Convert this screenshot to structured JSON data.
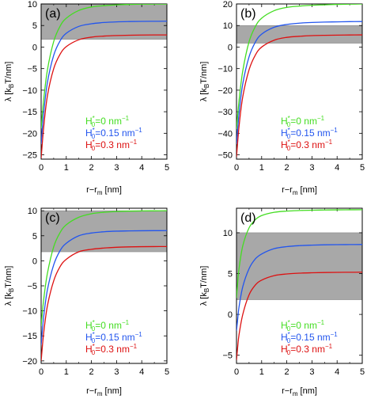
{
  "chart_data": [
    {
      "type": "line",
      "panel_label": "(a)",
      "xlabel": "r−r",
      "xlabel_sub": "m",
      "xlabel_unit": " [nm]",
      "ylabel_pre": "λ [k",
      "ylabel_sub": "B",
      "ylabel_post": "T/nm]",
      "xlim": [
        0,
        5
      ],
      "ylim": [
        -26,
        10
      ],
      "xticks": [
        0,
        1,
        2,
        3,
        4,
        5
      ],
      "yticks": [
        -25,
        -20,
        -15,
        -10,
        -5,
        0,
        5,
        10
      ],
      "shaded_band": [
        1.8,
        10
      ],
      "legend_placement": "bottom-right",
      "series": [
        {
          "name": "H0*=0 nm-1",
          "legend_prefix": "H",
          "legend_sub": "0",
          "legend_sup": "*",
          "legend_value": "=0 nm",
          "legend_exp": "−1",
          "color": "#44dd22",
          "x": [
            0,
            0.1,
            0.25,
            0.5,
            0.75,
            1,
            1.5,
            2,
            2.5,
            3,
            3.5,
            4,
            4.5,
            5
          ],
          "y": [
            -18.8,
            -12.3,
            -5.3,
            1.3,
            4.8,
            6.7,
            8.5,
            9.3,
            9.6,
            9.8,
            9.9,
            9.95,
            9.97,
            9.99
          ]
        },
        {
          "name": "H0*=0.15 nm-1",
          "legend_prefix": "H",
          "legend_sub": "0",
          "legend_sup": "*",
          "legend_value": "=0.15 nm",
          "legend_exp": "−1",
          "color": "#2255ee",
          "x": [
            0,
            0.1,
            0.25,
            0.5,
            0.75,
            1,
            1.5,
            2,
            2.5,
            3,
            3.5,
            4,
            4.5,
            5
          ],
          "y": [
            -22.5,
            -15.4,
            -8.2,
            -1.9,
            1.4,
            3.2,
            4.8,
            5.4,
            5.7,
            5.85,
            5.92,
            5.96,
            5.98,
            6.0
          ]
        },
        {
          "name": "H0*=0.3 nm-1",
          "legend_prefix": "H",
          "legend_sub": "0",
          "legend_sup": "*",
          "legend_value": "=0.3 nm",
          "legend_exp": "−1",
          "color": "#dd1111",
          "x": [
            0,
            0.1,
            0.25,
            0.5,
            0.75,
            1,
            1.5,
            2,
            2.5,
            3,
            3.5,
            4,
            4.5,
            5
          ],
          "y": [
            -25.8,
            -18.7,
            -11.3,
            -5.0,
            -1.7,
            0.1,
            1.7,
            2.3,
            2.55,
            2.68,
            2.75,
            2.79,
            2.81,
            2.82
          ]
        }
      ]
    },
    {
      "type": "line",
      "panel_label": "(b)",
      "xlabel": "r−r",
      "xlabel_sub": "m",
      "xlabel_unit": " [nm]",
      "ylabel_pre": "λ [k",
      "ylabel_sub": "B",
      "ylabel_post": "T/nm]",
      "xlim": [
        0,
        5
      ],
      "ylim": [
        -52,
        20
      ],
      "xticks": [
        0,
        1,
        2,
        3,
        4,
        5
      ],
      "yticks": [
        -50,
        -40,
        -30,
        -20,
        -10,
        0,
        10,
        20
      ],
      "shaded_band": [
        1.8,
        10
      ],
      "legend_placement": "bottom-right",
      "series": [
        {
          "name": "H0*=0 nm-1",
          "legend_prefix": "H",
          "legend_sub": "0",
          "legend_sup": "*",
          "legend_value": "=0 nm",
          "legend_exp": "−1",
          "color": "#44dd22",
          "x": [
            0,
            0.1,
            0.25,
            0.5,
            0.75,
            1,
            1.5,
            2,
            2.5,
            3,
            3.5,
            4,
            4.5,
            5
          ],
          "y": [
            -38,
            -25,
            -11,
            2.5,
            9.5,
            13.4,
            16.9,
            18.4,
            19.0,
            19.4,
            19.6,
            19.8,
            19.9,
            20.0
          ]
        },
        {
          "name": "H0*=0.15 nm-1",
          "legend_prefix": "H",
          "legend_sub": "0",
          "legend_sup": "*",
          "legend_value": "=0.15 nm",
          "legend_exp": "−1",
          "color": "#2255ee",
          "x": [
            0,
            0.1,
            0.25,
            0.5,
            0.75,
            1,
            1.5,
            2,
            2.5,
            3,
            3.5,
            4,
            4.5,
            5
          ],
          "y": [
            -45,
            -31,
            -17,
            -4.5,
            2.3,
            6.0,
            9.2,
            10.5,
            11.1,
            11.4,
            11.6,
            11.7,
            11.8,
            11.85
          ]
        },
        {
          "name": "H0*=0.3 nm-1",
          "legend_prefix": "H",
          "legend_sub": "0",
          "legend_sup": "*",
          "legend_value": "=0.3 nm",
          "legend_exp": "−1",
          "color": "#dd1111",
          "x": [
            0,
            0.1,
            0.25,
            0.5,
            0.75,
            1,
            1.5,
            2,
            2.5,
            3,
            3.5,
            4,
            4.5,
            5
          ],
          "y": [
            -51,
            -37,
            -23,
            -10.5,
            -3.7,
            0,
            3.2,
            4.5,
            5.0,
            5.3,
            5.45,
            5.55,
            5.6,
            5.65
          ]
        }
      ]
    },
    {
      "type": "line",
      "panel_label": "(c)",
      "xlabel": "r−r",
      "xlabel_sub": "m",
      "xlabel_unit": " [nm]",
      "ylabel_pre": "λ [k",
      "ylabel_sub": "B",
      "ylabel_post": "T/nm]",
      "xlim": [
        0,
        5
      ],
      "ylim": [
        -20.5,
        10.5
      ],
      "xticks": [
        0,
        1,
        2,
        3,
        4,
        5
      ],
      "yticks": [
        -20,
        -15,
        -10,
        -5,
        0,
        5,
        10
      ],
      "shaded_band": [
        1.8,
        10
      ],
      "legend_placement": "bottom-right",
      "series": [
        {
          "name": "H0*=0 nm-1",
          "legend_prefix": "H",
          "legend_sub": "0",
          "legend_sup": "*",
          "legend_value": "=0 nm",
          "legend_exp": "−1",
          "color": "#44dd22",
          "x": [
            0,
            0.1,
            0.25,
            0.5,
            0.75,
            1,
            1.5,
            2,
            2.5,
            3,
            3.5,
            4,
            4.5,
            5
          ],
          "y": [
            -13,
            -7.8,
            -2.5,
            2.8,
            5.6,
            7.2,
            8.7,
            9.4,
            9.7,
            9.85,
            9.92,
            9.96,
            9.98,
            10.0
          ]
        },
        {
          "name": "H0*=0.15 nm-1",
          "legend_prefix": "H",
          "legend_sub": "0",
          "legend_sup": "*",
          "legend_value": "=0.15 nm",
          "legend_exp": "−1",
          "color": "#2255ee",
          "x": [
            0,
            0.1,
            0.25,
            0.5,
            0.75,
            1,
            1.5,
            2,
            2.5,
            3,
            3.5,
            4,
            4.5,
            5
          ],
          "y": [
            -16.8,
            -11.2,
            -5.8,
            -0.8,
            2.0,
            3.5,
            5.0,
            5.55,
            5.8,
            5.92,
            5.97,
            6.0,
            6.02,
            6.03
          ]
        },
        {
          "name": "H0*=0.3 nm-1",
          "legend_prefix": "H",
          "legend_sub": "0",
          "legend_sup": "*",
          "legend_value": "=0.3 nm",
          "legend_exp": "−1",
          "color": "#dd1111",
          "x": [
            0,
            0.1,
            0.25,
            0.5,
            0.75,
            1,
            1.5,
            2,
            2.5,
            3,
            3.5,
            4,
            4.5,
            5
          ],
          "y": [
            -20,
            -14.5,
            -9.0,
            -4.0,
            -1.2,
            0.3,
            1.8,
            2.3,
            2.55,
            2.7,
            2.78,
            2.82,
            2.84,
            2.85
          ]
        }
      ]
    },
    {
      "type": "line",
      "panel_label": "(d)",
      "xlabel": "r−r",
      "xlabel_sub": "m",
      "xlabel_unit": " [nm]",
      "ylabel_pre": "λ [k",
      "ylabel_sub": "B",
      "ylabel_post": "T/nm]",
      "xlim": [
        0,
        5
      ],
      "ylim": [
        -6,
        13
      ],
      "xticks": [
        0,
        1,
        2,
        3,
        4,
        5
      ],
      "yticks": [
        -5,
        0,
        5,
        10
      ],
      "shaded_band": [
        1.8,
        10
      ],
      "legend_placement": "bottom-right",
      "series": [
        {
          "name": "H0*=0 nm-1",
          "legend_prefix": "H",
          "legend_sub": "0",
          "legend_sup": "*",
          "legend_value": "=0 nm",
          "legend_exp": "−1",
          "color": "#44dd22",
          "x": [
            0,
            0.05,
            0.1,
            0.25,
            0.5,
            0.75,
            1,
            1.5,
            2,
            2.5,
            3,
            3.5,
            4,
            4.5,
            5
          ],
          "y": [
            2,
            4.0,
            5.6,
            8.4,
            10.6,
            11.6,
            12.1,
            12.5,
            12.65,
            12.72,
            12.76,
            12.78,
            12.8,
            12.81,
            12.82
          ]
        },
        {
          "name": "H0*=0.15 nm-1",
          "legend_prefix": "H",
          "legend_sub": "0",
          "legend_sup": "*",
          "legend_value": "=0.15 nm",
          "legend_exp": "−1",
          "color": "#2255ee",
          "x": [
            0,
            0.05,
            0.1,
            0.25,
            0.5,
            0.75,
            1,
            1.5,
            2,
            2.5,
            3,
            3.5,
            4,
            4.5,
            5
          ],
          "y": [
            -2,
            -0.5,
            0.9,
            3.4,
            5.6,
            6.8,
            7.4,
            8.05,
            8.3,
            8.42,
            8.48,
            8.52,
            8.54,
            8.55,
            8.56
          ]
        },
        {
          "name": "H0*=0.3 nm-1",
          "legend_prefix": "H",
          "legend_sub": "0",
          "legend_sup": "*",
          "legend_value": "=0.3 nm",
          "legend_exp": "−1",
          "color": "#dd1111",
          "x": [
            0,
            0.05,
            0.1,
            0.25,
            0.5,
            0.75,
            1,
            1.5,
            2,
            2.5,
            3,
            3.5,
            4,
            4.5,
            5
          ],
          "y": [
            -5.6,
            -3.9,
            -2.5,
            0.0,
            2.4,
            3.6,
            4.2,
            4.75,
            4.95,
            5.05,
            5.1,
            5.13,
            5.15,
            5.16,
            5.17
          ]
        }
      ]
    }
  ]
}
